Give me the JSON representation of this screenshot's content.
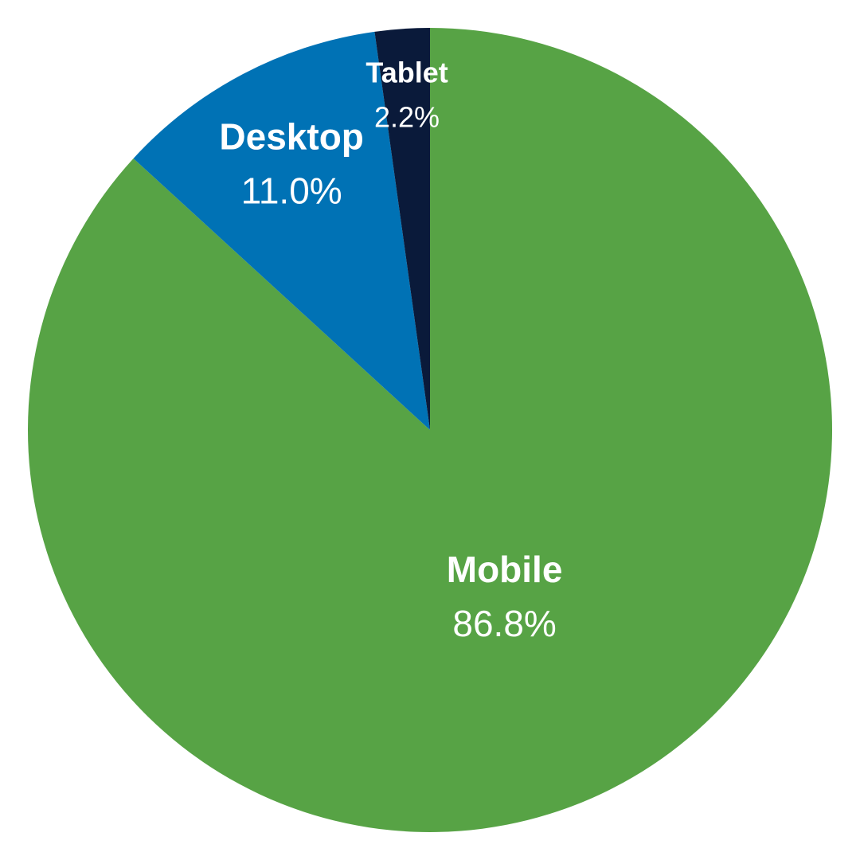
{
  "chart_data": {
    "type": "pie",
    "categories": [
      "Mobile",
      "Desktop",
      "Tablet"
    ],
    "values": [
      86.8,
      11.0,
      2.2
    ],
    "value_labels": [
      "86.8%",
      "11.0%",
      "2.2%"
    ],
    "colors": [
      "#57a345",
      "#0072b5",
      "#0a1a3a"
    ]
  }
}
